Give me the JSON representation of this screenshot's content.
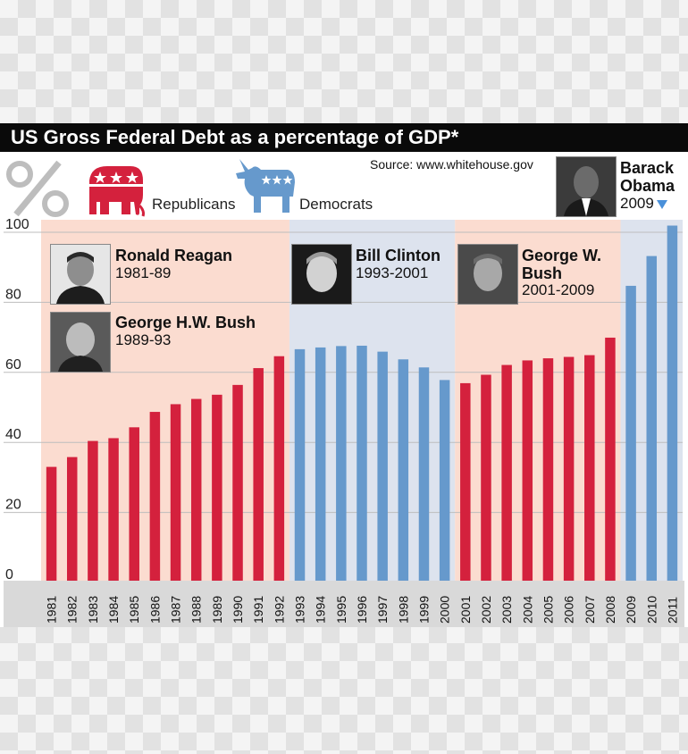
{
  "title": "US Gross Federal Debt as a percentage of GDP*",
  "source": "Source: www.whitehouse.gov",
  "percent_symbol": "%",
  "legend": {
    "republicans_label": "Republicans",
    "democrats_label": "Democrats",
    "republican_color": "#d4213d",
    "democrat_color": "#6699cc"
  },
  "presidents": [
    {
      "name": "Ronald Reagan",
      "years": "1981-89",
      "party": "republican"
    },
    {
      "name": "George H.W. Bush",
      "years": "1989-93",
      "party": "republican"
    },
    {
      "name": "Bill Clinton",
      "years": "1993-2001",
      "party": "democrat"
    },
    {
      "name": "George W. Bush",
      "years": "2001-2009",
      "party": "republican"
    },
    {
      "name": "Barack Obama",
      "years": "2009",
      "party": "democrat"
    }
  ],
  "chart_data": {
    "type": "bar",
    "title": "US Gross Federal Debt as a percentage of GDP*",
    "categories": [
      "1981",
      "1982",
      "1983",
      "1984",
      "1985",
      "1986",
      "1987",
      "1988",
      "1989",
      "1990",
      "1991",
      "1992",
      "1993",
      "1994",
      "1995",
      "1996",
      "1997",
      "1998",
      "1999",
      "2000",
      "2001",
      "2002",
      "2003",
      "2004",
      "2005",
      "2006",
      "2007",
      "2008",
      "2009",
      "2010",
      "2011"
    ],
    "values": [
      32.5,
      35.3,
      39.9,
      40.7,
      43.8,
      48.2,
      50.4,
      51.9,
      53.1,
      55.9,
      60.7,
      64.1,
      66.1,
      66.6,
      67.0,
      67.1,
      65.4,
      63.2,
      60.9,
      57.3,
      56.4,
      58.8,
      61.6,
      62.9,
      63.5,
      63.9,
      64.4,
      69.4,
      84.2,
      92.7,
      101.4
    ],
    "party": [
      "R",
      "R",
      "R",
      "R",
      "R",
      "R",
      "R",
      "R",
      "R",
      "R",
      "R",
      "R",
      "D",
      "D",
      "D",
      "D",
      "D",
      "D",
      "D",
      "D",
      "R",
      "R",
      "R",
      "R",
      "R",
      "R",
      "R",
      "R",
      "D",
      "D",
      "D"
    ],
    "ylim": [
      0,
      100
    ],
    "yticks": [
      0,
      20,
      40,
      60,
      80,
      100
    ],
    "xlabel": "",
    "ylabel": "",
    "grid": true,
    "colors": {
      "republican_bar": "#d4213d",
      "democrat_bar": "#6699cc",
      "republican_band": "#fbdcd0",
      "democrat_band": "#dde3ee"
    }
  }
}
